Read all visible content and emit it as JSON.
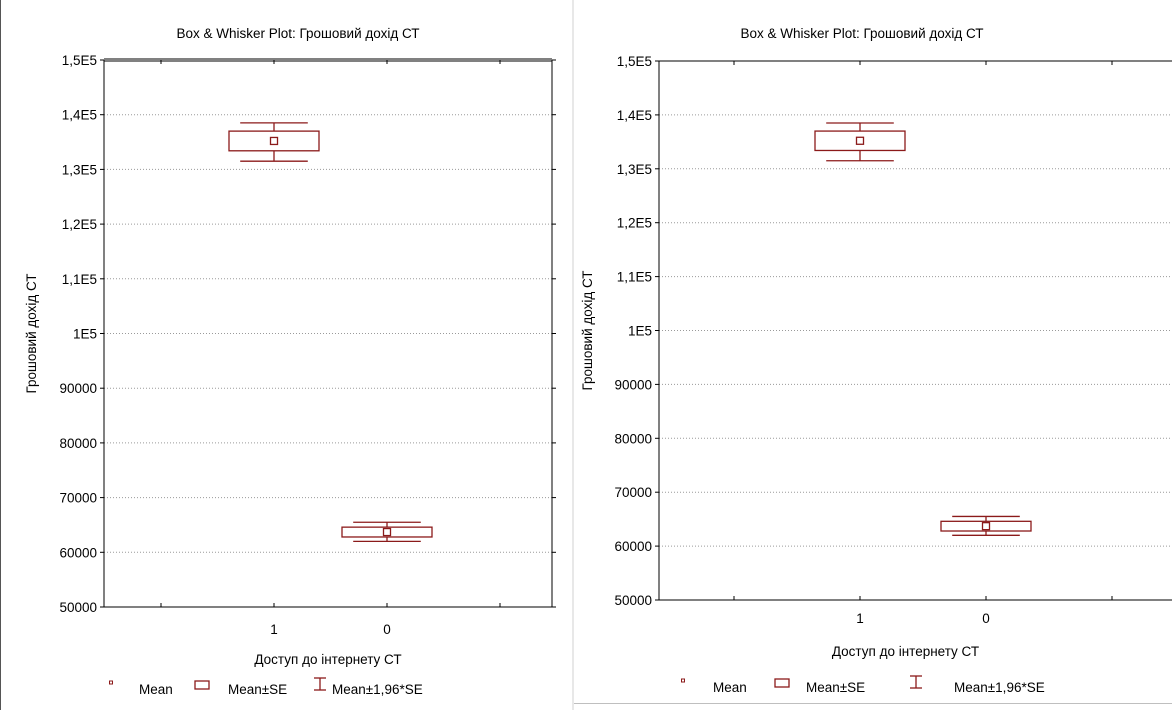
{
  "colors": {
    "series": "#8b1a1a",
    "grid": "#9a9a9a",
    "frame": "#000000",
    "background": "#ffffff"
  },
  "chart_data": [
    {
      "type": "box",
      "title": "Box & Whisker Plot: Грошовий дохід СТ",
      "xlabel": "Доступ до інтернету СТ",
      "ylabel": "Грошовий дохід СТ",
      "ylim": [
        50000,
        150000
      ],
      "yticks": [
        50000,
        60000,
        70000,
        80000,
        90000,
        100000,
        110000,
        120000,
        130000,
        140000,
        150000
      ],
      "ytick_labels": [
        "50000",
        "60000",
        "70000",
        "80000",
        "90000",
        "1E5",
        "1,1E5",
        "1,2E5",
        "1,3E5",
        "1,4E5",
        "1,5E5"
      ],
      "categories": [
        "1",
        "0"
      ],
      "boxes": [
        {
          "category": "1",
          "mean": 135200,
          "se_low": 133400,
          "se_high": 137000,
          "ci_low": 131500,
          "ci_high": 138500
        },
        {
          "category": "0",
          "mean": 63700,
          "se_low": 62800,
          "se_high": 64600,
          "ci_low": 62000,
          "ci_high": 65500
        }
      ],
      "grid": true,
      "legend_position": "bottom",
      "legend": [
        "Mean",
        "Mean±SE",
        "Mean±1,96*SE"
      ]
    },
    {
      "type": "box",
      "title": "Box & Whisker Plot: Грошовий дохід СТ",
      "xlabel": "Доступ до інтернету СТ",
      "ylabel": "Грошовий дохід СТ",
      "ylim": [
        50000,
        150000
      ],
      "yticks": [
        50000,
        60000,
        70000,
        80000,
        90000,
        100000,
        110000,
        120000,
        130000,
        140000,
        150000
      ],
      "ytick_labels": [
        "50000",
        "60000",
        "70000",
        "80000",
        "90000",
        "1E5",
        "1,1E5",
        "1,2E5",
        "1,3E5",
        "1,4E5",
        "1,5E5"
      ],
      "categories": [
        "1",
        "0"
      ],
      "boxes": [
        {
          "category": "1",
          "mean": 135200,
          "se_low": 133400,
          "se_high": 137000,
          "ci_low": 131500,
          "ci_high": 138500
        },
        {
          "category": "0",
          "mean": 63700,
          "se_low": 62800,
          "se_high": 64600,
          "ci_low": 62000,
          "ci_high": 65500
        }
      ],
      "grid": true,
      "legend_position": "bottom",
      "legend": [
        "Mean",
        "Mean±SE",
        "Mean±1,96*SE"
      ]
    }
  ]
}
